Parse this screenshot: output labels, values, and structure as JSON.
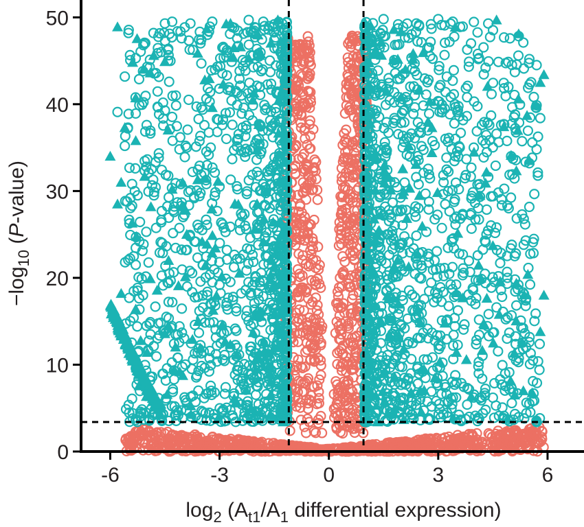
{
  "chart_data": {
    "type": "scatter",
    "title": "",
    "xlabel": {
      "prefix": "log",
      "prefix_sub": "2",
      "open": " (A",
      "a_sub": "t1",
      "mid": "/A",
      "b_sub": "1",
      "suffix": " differential expression)"
    },
    "ylabel": {
      "prefix": "−log",
      "prefix_sub": "10",
      "open": " (",
      "italic": "P",
      "suffix": "-value)"
    },
    "xlim": [
      -6.8,
      7.0
    ],
    "ylim": [
      0,
      52
    ],
    "xticks": [
      {
        "value": -6,
        "label": "-6"
      },
      {
        "value": -3,
        "label": "-3"
      },
      {
        "value": 0,
        "label": "0"
      },
      {
        "value": 3,
        "label": "3"
      },
      {
        "value": 6,
        "label": "6"
      }
    ],
    "yticks": [
      {
        "value": 0,
        "label": "0"
      },
      {
        "value": 10,
        "label": "10"
      },
      {
        "value": 20,
        "label": "20"
      },
      {
        "value": 30,
        "label": "30"
      },
      {
        "value": 40,
        "label": "40"
      },
      {
        "value": 50,
        "label": "50"
      }
    ],
    "thresholds": {
      "x": [
        -1.1,
        0.95
      ],
      "y": 3.4
    },
    "grid": false,
    "legend": "none",
    "colors": {
      "significant": "#1bb3b3",
      "not_significant": "#ec7063",
      "axis": "#000000",
      "text": "#231f20"
    },
    "series": [
      {
        "marker": "circle-open",
        "color": "#1bb3b3",
        "points": [
          [
            -5.5,
            48.2
          ],
          [
            -5.3,
            45.3
          ],
          [
            -5.1,
            43.8
          ],
          [
            -4.5,
            49.3
          ],
          [
            -4.3,
            49.5
          ],
          [
            -3.8,
            49.3
          ],
          [
            -3.2,
            49.5
          ],
          [
            -2.6,
            48.8
          ],
          [
            -2.2,
            49.7
          ],
          [
            -1.8,
            49.5
          ],
          [
            -1.5,
            49.2
          ],
          [
            -5.8,
            39.1
          ],
          [
            -5.6,
            35.2
          ],
          [
            -5.0,
            37.6
          ],
          [
            -4.7,
            39.7
          ],
          [
            -4.2,
            41.0
          ],
          [
            -4.6,
            46.0
          ],
          [
            -3.5,
            44.7
          ],
          [
            -2.9,
            46.6
          ],
          [
            -5.4,
            28.3
          ],
          [
            -5.2,
            24.2
          ],
          [
            -5.3,
            21.5
          ],
          [
            -5.1,
            18.0
          ],
          [
            -4.9,
            14.9
          ],
          [
            -4.8,
            29.5
          ],
          [
            -4.6,
            26.4
          ],
          [
            -4.4,
            19.4
          ],
          [
            -4.1,
            34.8
          ],
          [
            -3.9,
            35.0
          ],
          [
            -4.0,
            27.0
          ],
          [
            -1.5,
            47.4
          ],
          [
            -1.3,
            46.0
          ],
          [
            -2.4,
            41.0
          ],
          [
            1.5,
            49.8
          ],
          [
            1.9,
            49.2
          ],
          [
            2.4,
            49.3
          ],
          [
            3.0,
            49.8
          ],
          [
            3.4,
            49.5
          ],
          [
            3.6,
            48.9
          ],
          [
            3.9,
            47.0
          ],
          [
            4.1,
            45.2
          ],
          [
            4.3,
            44.2
          ],
          [
            5.2,
            45.6
          ],
          [
            5.5,
            45.2
          ],
          [
            5.7,
            44.5
          ],
          [
            4.2,
            37.6
          ],
          [
            4.4,
            37.6
          ],
          [
            4.6,
            36.6
          ],
          [
            4.8,
            37.7
          ],
          [
            5.0,
            34.0
          ],
          [
            5.5,
            33.2
          ],
          [
            5.7,
            34.8
          ],
          [
            5.8,
            38.4
          ],
          [
            4.5,
            29.4
          ],
          [
            4.9,
            28.3
          ],
          [
            5.3,
            27.3
          ],
          [
            4.6,
            25.8
          ],
          [
            5.4,
            24.3
          ],
          [
            5.6,
            24.1
          ],
          [
            4.7,
            21.7
          ],
          [
            5.1,
            22.5
          ],
          [
            4.9,
            20.0
          ],
          [
            5.2,
            19.2
          ],
          [
            5.4,
            17.4
          ],
          [
            4.6,
            16.6
          ],
          [
            5.5,
            12.6
          ],
          [
            5.6,
            10.5
          ],
          [
            5.2,
            10.3
          ],
          [
            5.6,
            8.1
          ],
          [
            5.5,
            5.5
          ],
          [
            5.7,
            3.4
          ],
          [
            4.7,
            8.3
          ],
          [
            4.5,
            6.2
          ],
          [
            4.3,
            4.8
          ],
          [
            4.1,
            3.9
          ],
          [
            3.8,
            7.3
          ],
          [
            2.7,
            46.5
          ],
          [
            3.2,
            41.4
          ],
          [
            -3.0,
            30.5
          ],
          [
            -2.5,
            36.0
          ],
          [
            -2.3,
            26.0
          ],
          [
            -1.9,
            19.5
          ],
          [
            -1.6,
            14.0
          ],
          [
            2.2,
            36.2
          ],
          [
            1.8,
            31.0
          ],
          [
            1.6,
            25.0
          ],
          [
            2.9,
            22.0
          ],
          [
            3.5,
            18.0
          ],
          [
            2.3,
            12.5
          ],
          [
            1.7,
            8.0
          ]
        ]
      },
      {
        "marker": "triangle-filled",
        "color": "#1bb3b3",
        "points": [
          [
            -5.8,
            48.9
          ],
          [
            -2.7,
            49.3
          ],
          [
            -1.4,
            49.7
          ],
          [
            -4.9,
            43.6
          ],
          [
            -4.5,
            44.9
          ],
          [
            -5.6,
            37.3
          ],
          [
            -5.3,
            35.8
          ],
          [
            -6.0,
            34.0
          ],
          [
            -5.7,
            31.0
          ],
          [
            -5.8,
            28.5
          ],
          [
            -4.3,
            30.2
          ],
          [
            -5.4,
            26.3
          ],
          [
            -5.7,
            18.2
          ],
          [
            -5.3,
            16.4
          ],
          [
            -4.9,
            19.9
          ],
          [
            -4.4,
            22.0
          ],
          [
            -3.9,
            25.0
          ],
          [
            -3.6,
            31.3
          ],
          [
            -2.9,
            42.3
          ],
          [
            -3.2,
            39.6
          ],
          [
            4.6,
            49.7
          ],
          [
            4.8,
            37.4
          ],
          [
            5.2,
            40.6
          ],
          [
            5.9,
            43.4
          ],
          [
            5.8,
            42.5
          ],
          [
            5.5,
            33.5
          ],
          [
            5.0,
            34.1
          ],
          [
            4.3,
            30.9
          ],
          [
            4.5,
            23.7
          ],
          [
            4.7,
            19.6
          ],
          [
            5.9,
            18.0
          ],
          [
            5.3,
            12.6
          ],
          [
            5.8,
            13.8
          ],
          [
            5.1,
            6.5
          ],
          [
            5.7,
            3.7
          ],
          [
            4.9,
            3.8
          ],
          [
            2.1,
            44.0
          ],
          [
            -1.9,
            45.6
          ]
        ]
      }
    ],
    "mass_regions": {
      "sig_left": {
        "x": [
          -5.6,
          -1.15
        ],
        "y_max": 49.8
      },
      "sig_right": {
        "x": [
          0.98,
          5.8
        ],
        "y_max": 49.8
      },
      "nonsig": {
        "x": [
          -5.6,
          5.9
        ],
        "y_max": 3.4
      },
      "center_spine": {
        "x": [
          -1.1,
          0.95
        ],
        "y_max": 49.0
      }
    }
  }
}
